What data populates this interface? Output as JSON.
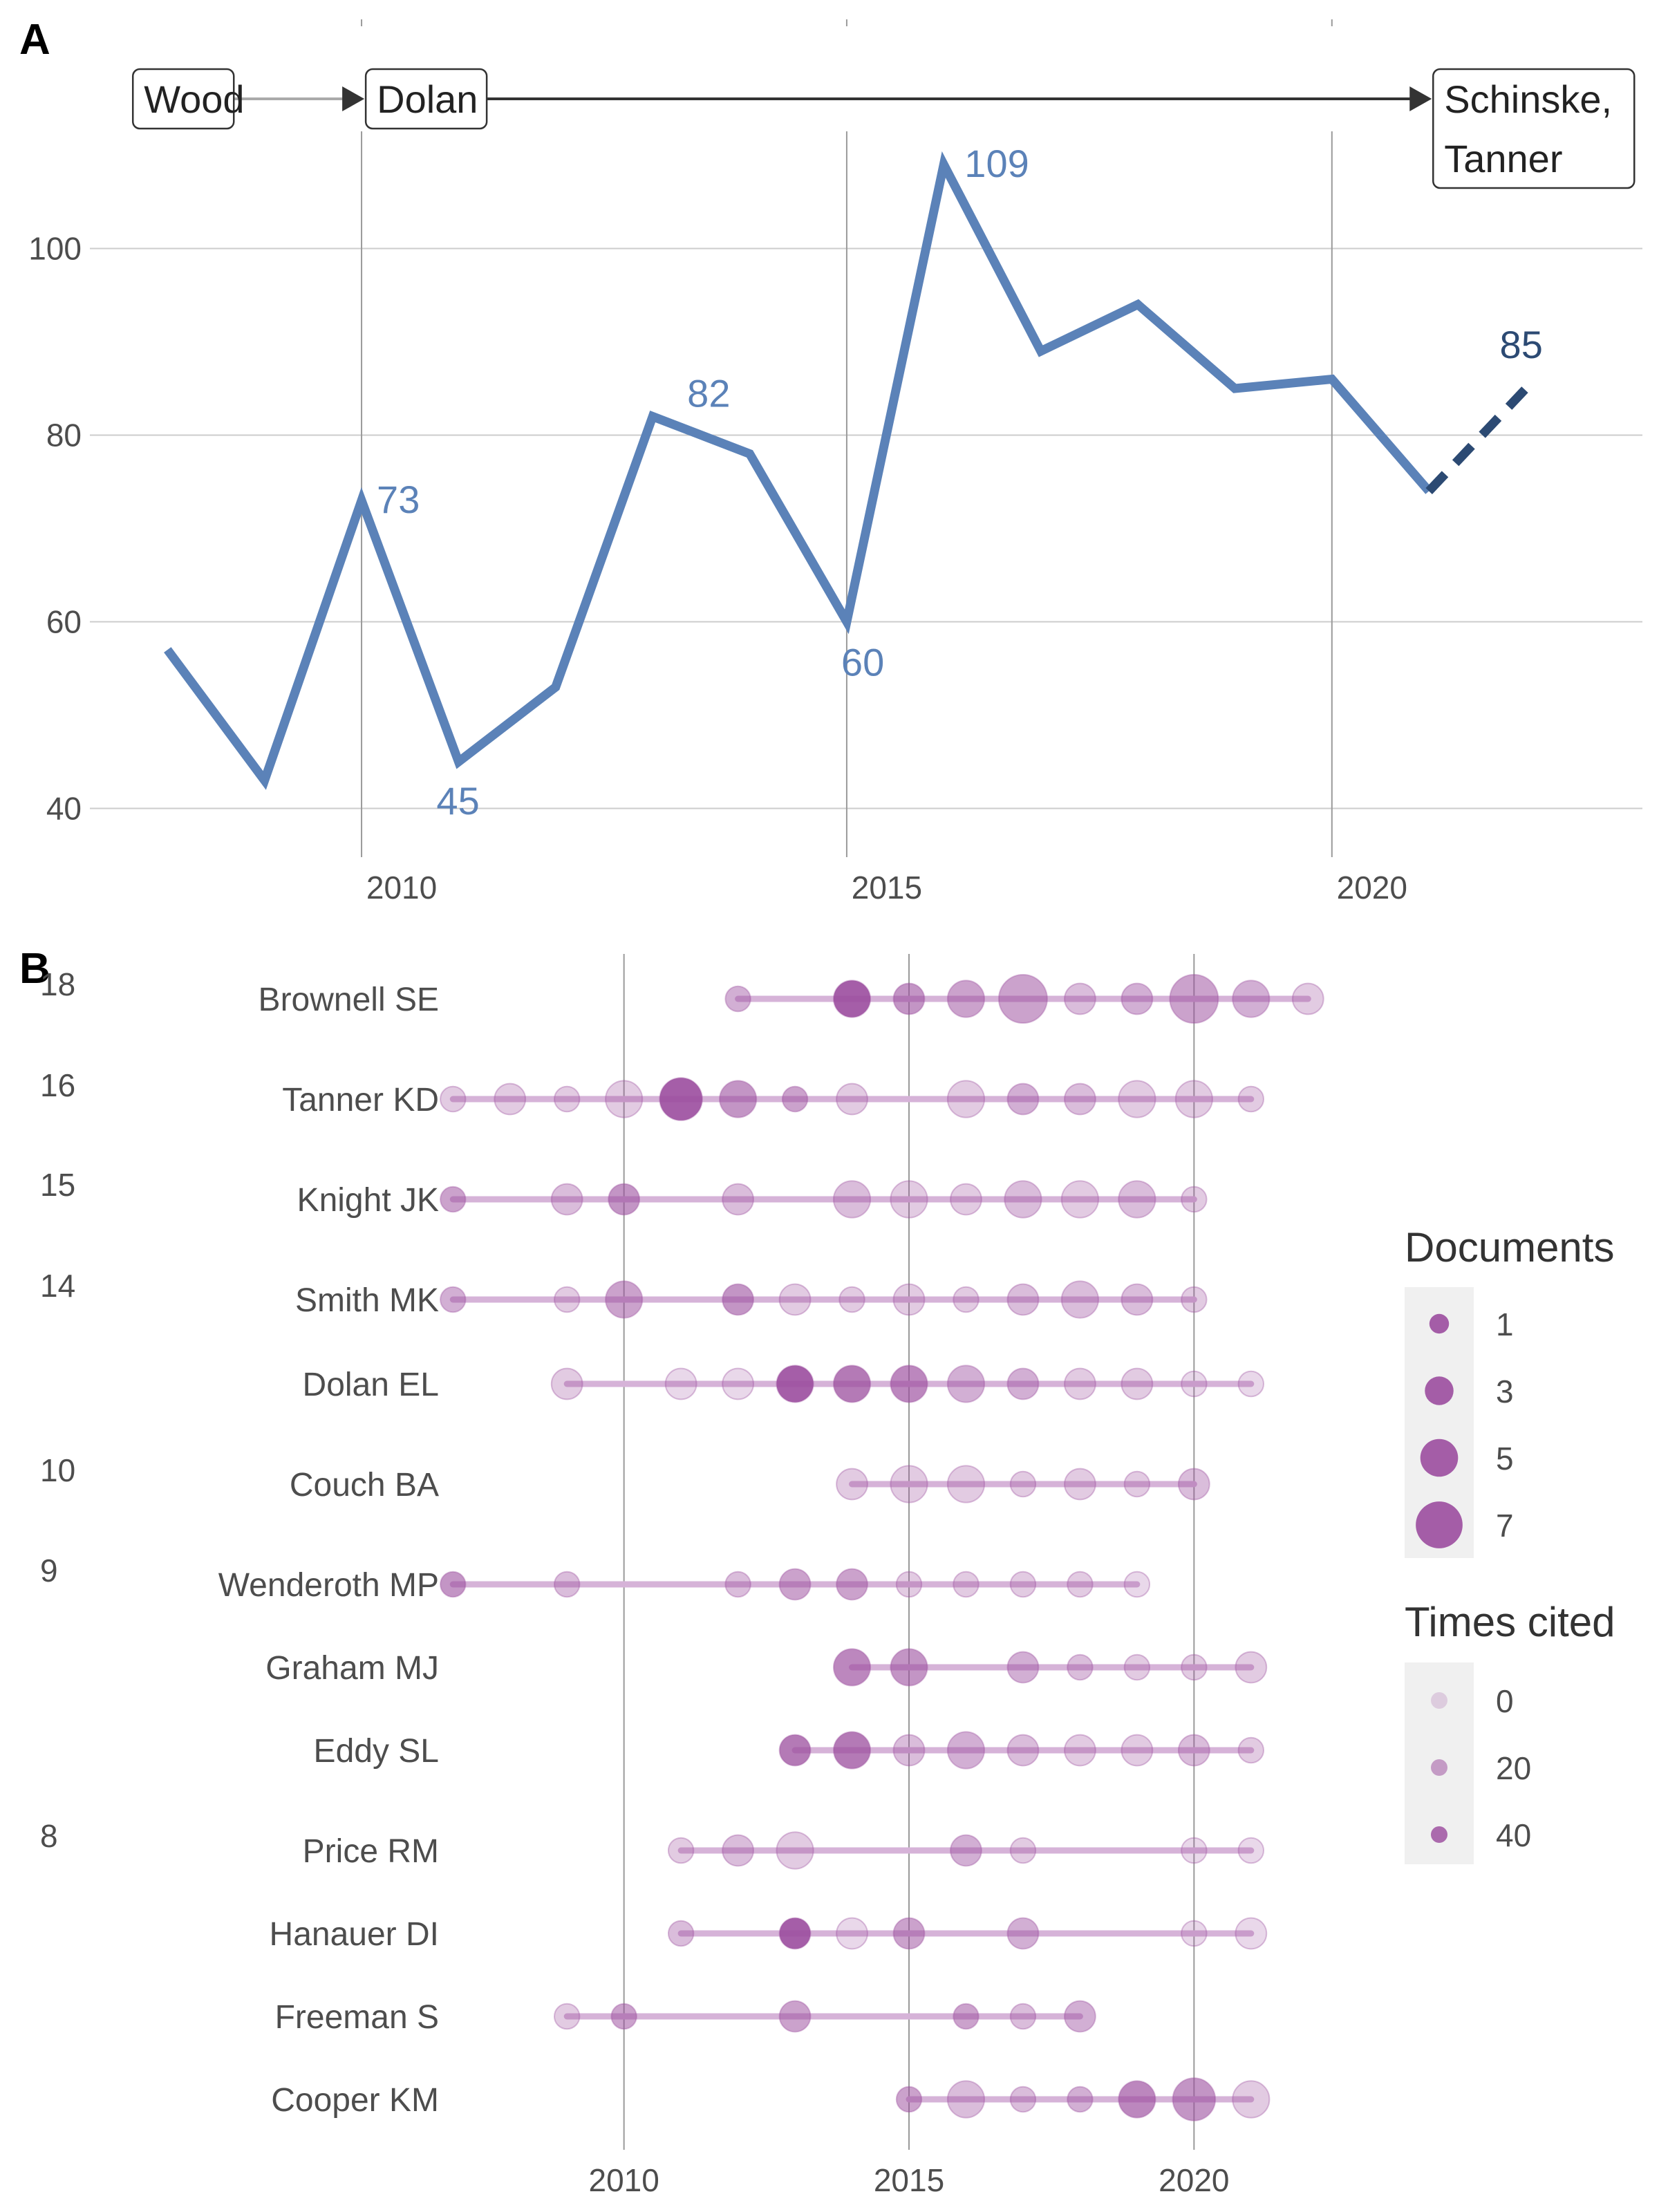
{
  "chart_data": [
    {
      "panel": "A",
      "type": "line",
      "x": [
        2008,
        2009,
        2010,
        2011,
        2012,
        2013,
        2014,
        2015,
        2016,
        2017,
        2018,
        2019,
        2020,
        2021
      ],
      "y": [
        57,
        43,
        73,
        45,
        53,
        82,
        78,
        60,
        109,
        89,
        94,
        85,
        86,
        74
      ],
      "projected": {
        "x": [
          2021,
          2022
        ],
        "y": [
          74,
          85
        ]
      },
      "point_labels": [
        {
          "x": 2010,
          "y": 73,
          "text": "73"
        },
        {
          "x": 2011,
          "y": 45,
          "text": "45"
        },
        {
          "x": 2013,
          "y": 82,
          "text": "82"
        },
        {
          "x": 2015,
          "y": 60,
          "text": "60"
        },
        {
          "x": 2016,
          "y": 109,
          "text": "109"
        },
        {
          "x": 2022,
          "y": 85,
          "text": "85"
        }
      ],
      "xticks": [
        2010,
        2015,
        2020
      ],
      "yticks": [
        40,
        60,
        80,
        100
      ],
      "xlim": [
        2007.2,
        2023.2
      ],
      "ylim": [
        37,
        117
      ],
      "grid": true,
      "line_color": "#5b82b8",
      "projection_color": "#2c4a73",
      "annotations": [
        {
          "x": 2007.8,
          "text": [
            "Wood"
          ]
        },
        {
          "x": 2010.2,
          "text": [
            "Dolan"
          ]
        },
        {
          "x": 2021.2,
          "text": [
            "Schinske,",
            "Tanner"
          ]
        }
      ]
    },
    {
      "panel": "B",
      "type": "scatter",
      "xticks": [
        2010,
        2015,
        2020
      ],
      "xlim": [
        2007.3,
        2022.7
      ],
      "grid": true,
      "point_color": "#9b4d9e",
      "legend_position": "right",
      "rows": [
        {
          "author": "Brownell SE",
          "count": "18",
          "points": [
            [
              2012,
              1,
              15
            ],
            [
              2014,
              3,
              45
            ],
            [
              2015,
              2,
              25
            ],
            [
              2016,
              3,
              20
            ],
            [
              2017,
              5,
              20
            ],
            [
              2018,
              2,
              10
            ],
            [
              2019,
              2,
              15
            ],
            [
              2020,
              5,
              20
            ],
            [
              2021,
              3,
              15
            ],
            [
              2022,
              2,
              5
            ]
          ]
        },
        {
          "author": "Tanner KD",
          "count": "16",
          "points": [
            [
              2007,
              1,
              5
            ],
            [
              2008,
              2,
              5
            ],
            [
              2009,
              1,
              5
            ],
            [
              2010,
              3,
              5
            ],
            [
              2011,
              4,
              45
            ],
            [
              2012,
              3,
              25
            ],
            [
              2013,
              1,
              20
            ],
            [
              2014,
              2,
              5
            ],
            [
              2016,
              3,
              5
            ],
            [
              2017,
              2,
              15
            ],
            [
              2018,
              2,
              10
            ],
            [
              2019,
              3,
              5
            ],
            [
              2020,
              3,
              5
            ],
            [
              2021,
              1,
              5
            ]
          ]
        },
        {
          "author": "Knight JK",
          "count": "15",
          "points": [
            [
              2007,
              1,
              20
            ],
            [
              2009,
              2,
              10
            ],
            [
              2010,
              2,
              25
            ],
            [
              2012,
              2,
              10
            ],
            [
              2014,
              3,
              10
            ],
            [
              2015,
              3,
              5
            ],
            [
              2016,
              2,
              5
            ],
            [
              2017,
              3,
              10
            ],
            [
              2018,
              3,
              5
            ],
            [
              2019,
              3,
              10
            ],
            [
              2020,
              1,
              5
            ]
          ]
        },
        {
          "author": "Smith MK",
          "count": "14",
          "points": [
            [
              2007,
              1,
              15
            ],
            [
              2009,
              1,
              5
            ],
            [
              2010,
              3,
              20
            ],
            [
              2012,
              2,
              25
            ],
            [
              2013,
              2,
              5
            ],
            [
              2014,
              1,
              5
            ],
            [
              2015,
              2,
              5
            ],
            [
              2016,
              1,
              5
            ],
            [
              2017,
              2,
              10
            ],
            [
              2018,
              3,
              10
            ],
            [
              2019,
              2,
              10
            ],
            [
              2020,
              1,
              5
            ]
          ]
        },
        {
          "author": "Dolan EL",
          "count": "",
          "points": [
            [
              2009,
              2,
              5
            ],
            [
              2011,
              2,
              0
            ],
            [
              2012,
              2,
              0
            ],
            [
              2013,
              3,
              45
            ],
            [
              2014,
              3,
              35
            ],
            [
              2015,
              3,
              30
            ],
            [
              2016,
              3,
              15
            ],
            [
              2017,
              2,
              15
            ],
            [
              2018,
              2,
              5
            ],
            [
              2019,
              2,
              5
            ],
            [
              2020,
              1,
              0
            ],
            [
              2021,
              1,
              0
            ]
          ]
        },
        {
          "author": "Couch BA",
          "count": "10",
          "points": [
            [
              2014,
              2,
              5
            ],
            [
              2015,
              3,
              5
            ],
            [
              2016,
              3,
              5
            ],
            [
              2017,
              1,
              5
            ],
            [
              2018,
              2,
              5
            ],
            [
              2019,
              1,
              5
            ],
            [
              2020,
              2,
              10
            ]
          ]
        },
        {
          "author": "Wenderoth MP",
          "count": "9",
          "points": [
            [
              2007,
              1,
              25
            ],
            [
              2009,
              1,
              10
            ],
            [
              2012,
              1,
              10
            ],
            [
              2013,
              2,
              20
            ],
            [
              2014,
              2,
              20
            ],
            [
              2015,
              1,
              5
            ],
            [
              2016,
              1,
              5
            ],
            [
              2017,
              1,
              5
            ],
            [
              2018,
              1,
              5
            ],
            [
              2019,
              1,
              0
            ]
          ]
        },
        {
          "author": "Graham MJ",
          "count": "",
          "points": [
            [
              2014,
              3,
              30
            ],
            [
              2015,
              3,
              25
            ],
            [
              2017,
              2,
              15
            ],
            [
              2018,
              1,
              10
            ],
            [
              2019,
              1,
              5
            ],
            [
              2020,
              1,
              5
            ],
            [
              2021,
              2,
              5
            ]
          ]
        },
        {
          "author": "Eddy SL",
          "count": "",
          "points": [
            [
              2013,
              2,
              35
            ],
            [
              2014,
              3,
              35
            ],
            [
              2015,
              2,
              10
            ],
            [
              2016,
              3,
              15
            ],
            [
              2017,
              2,
              10
            ],
            [
              2018,
              2,
              5
            ],
            [
              2019,
              2,
              5
            ],
            [
              2020,
              2,
              10
            ],
            [
              2021,
              1,
              5
            ]
          ]
        },
        {
          "author": "Price RM",
          "count": "8",
          "points": [
            [
              2011,
              1,
              5
            ],
            [
              2012,
              2,
              10
            ],
            [
              2013,
              3,
              5
            ],
            [
              2016,
              2,
              15
            ],
            [
              2017,
              1,
              5
            ],
            [
              2020,
              1,
              0
            ],
            [
              2021,
              1,
              0
            ]
          ]
        },
        {
          "author": "Hanauer DI",
          "count": "",
          "points": [
            [
              2011,
              1,
              10
            ],
            [
              2013,
              2,
              45
            ],
            [
              2014,
              2,
              0
            ],
            [
              2015,
              2,
              20
            ],
            [
              2017,
              2,
              15
            ],
            [
              2020,
              1,
              0
            ],
            [
              2021,
              2,
              0
            ]
          ]
        },
        {
          "author": "Freeman S",
          "count": "",
          "points": [
            [
              2009,
              1,
              5
            ],
            [
              2010,
              1,
              20
            ],
            [
              2013,
              2,
              20
            ],
            [
              2016,
              1,
              20
            ],
            [
              2017,
              1,
              10
            ],
            [
              2018,
              2,
              15
            ]
          ]
        },
        {
          "author": "Cooper KM",
          "count": "",
          "points": [
            [
              2015,
              1,
              20
            ],
            [
              2016,
              3,
              10
            ],
            [
              2017,
              1,
              10
            ],
            [
              2018,
              1,
              15
            ],
            [
              2019,
              3,
              30
            ],
            [
              2020,
              4,
              25
            ],
            [
              2021,
              3,
              5
            ]
          ]
        }
      ],
      "legend_documents": {
        "title": "Documents",
        "values": [
          1,
          3,
          5,
          7
        ]
      },
      "legend_cited": {
        "title": "Times cited",
        "values": [
          0,
          20,
          40
        ]
      }
    }
  ],
  "labels": {
    "panel_a": "A",
    "panel_b": "B"
  }
}
